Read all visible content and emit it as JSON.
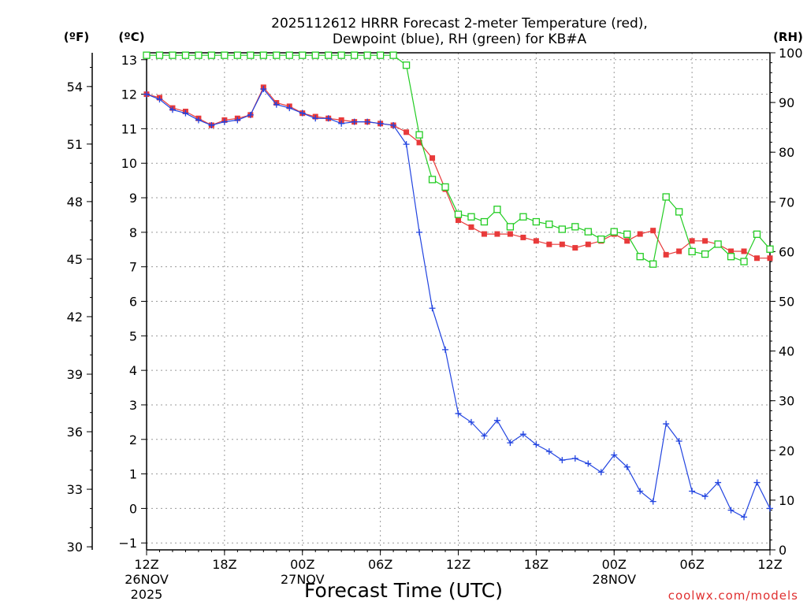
{
  "chart_data": {
    "type": "line",
    "title": "2025112612 HRRR Forecast 2-meter Temperature (red),",
    "title_line2": "Dewpoint (blue), RH (green) for KB#A",
    "xlabel": "Forecast Time (UTC)",
    "credit": "coolwx.com/models",
    "left_axis_label": "(ºC)",
    "far_left_axis_label": "(ºF)",
    "right_axis_label": "(RH)",
    "ylim_c": [
      -1.2,
      13.2
    ],
    "ylim_rh": [
      0,
      100
    ],
    "yticks_c": [
      "−1",
      "0",
      "1",
      "2",
      "3",
      "4",
      "5",
      "6",
      "7",
      "8",
      "9",
      "10",
      "11",
      "12",
      "13"
    ],
    "yticks_f": [
      "30",
      "33",
      "36",
      "39",
      "42",
      "45",
      "48",
      "51",
      "54"
    ],
    "yticks_rh": [
      "0",
      "10",
      "20",
      "30",
      "40",
      "50",
      "60",
      "70",
      "80",
      "90",
      "100"
    ],
    "xlim_hours": [
      0,
      48
    ],
    "xticks": [
      {
        "h": 0,
        "label": "12Z",
        "sub": "26NOV",
        "sub2": "2025"
      },
      {
        "h": 6,
        "label": "18Z",
        "sub": "",
        "sub2": ""
      },
      {
        "h": 12,
        "label": "00Z",
        "sub": "27NOV",
        "sub2": ""
      },
      {
        "h": 18,
        "label": "06Z",
        "sub": "",
        "sub2": ""
      },
      {
        "h": 24,
        "label": "12Z",
        "sub": "",
        "sub2": ""
      },
      {
        "h": 30,
        "label": "18Z",
        "sub": "",
        "sub2": ""
      },
      {
        "h": 36,
        "label": "00Z",
        "sub": "28NOV",
        "sub2": ""
      },
      {
        "h": 42,
        "label": "06Z",
        "sub": "",
        "sub2": ""
      },
      {
        "h": 48,
        "label": "12Z",
        "sub": "",
        "sub2": ""
      }
    ],
    "series": [
      {
        "name": "Temperature",
        "color": "#e83a3a",
        "marker": "filled-square",
        "values": [
          12.0,
          11.9,
          11.6,
          11.5,
          11.3,
          11.1,
          11.25,
          11.3,
          11.4,
          12.2,
          11.75,
          11.65,
          11.45,
          11.35,
          11.3,
          11.25,
          11.2,
          11.2,
          11.15,
          11.1,
          10.9,
          10.6,
          10.15,
          9.25,
          8.35,
          8.15,
          7.95,
          7.95,
          7.95,
          7.85,
          7.75,
          7.65,
          7.65,
          7.55,
          7.65,
          7.75,
          7.95,
          7.75,
          7.95,
          8.05,
          7.35,
          7.45,
          7.75,
          7.75,
          7.65,
          7.45,
          7.45,
          7.25,
          7.25
        ]
      },
      {
        "name": "Dewpoint",
        "color": "#2244e0",
        "marker": "plus",
        "values": [
          12.0,
          11.85,
          11.55,
          11.45,
          11.25,
          11.1,
          11.2,
          11.25,
          11.4,
          12.15,
          11.7,
          11.6,
          11.45,
          11.3,
          11.3,
          11.15,
          11.2,
          11.2,
          11.15,
          11.1,
          10.55,
          8.0,
          5.8,
          4.6,
          2.75,
          2.5,
          2.1,
          2.55,
          1.9,
          2.15,
          1.85,
          1.65,
          1.4,
          1.45,
          1.3,
          1.05,
          1.55,
          1.2,
          0.5,
          0.2,
          2.45,
          1.95,
          0.5,
          0.35,
          0.75,
          -0.05,
          -0.25,
          0.75,
          0.0
        ]
      },
      {
        "name": "RH",
        "color": "#22cc22",
        "marker": "open-square",
        "axis": "rh",
        "values": [
          99.5,
          99.5,
          99.5,
          99.5,
          99.5,
          99.5,
          99.5,
          99.5,
          99.5,
          99.5,
          99.5,
          99.5,
          99.5,
          99.5,
          99.5,
          99.5,
          99.5,
          99.5,
          99.5,
          99.5,
          97.5,
          83.5,
          74.5,
          73.0,
          67.5,
          67.0,
          66.0,
          68.5,
          65.0,
          67.0,
          66.0,
          65.5,
          64.5,
          65.0,
          64.0,
          62.5,
          64.0,
          63.5,
          59.0,
          57.5,
          71.0,
          68.0,
          60.0,
          59.5,
          61.5,
          59.0,
          58.0,
          63.5,
          60.5
        ]
      }
    ]
  }
}
